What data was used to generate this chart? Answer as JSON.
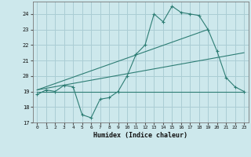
{
  "xlabel": "Humidex (Indice chaleur)",
  "ylabel": "",
  "background_color": "#cde8ec",
  "grid_color": "#aacdd4",
  "line_color": "#2d7d74",
  "xlim": [
    -0.5,
    23.5
  ],
  "ylim": [
    17,
    24.8
  ],
  "yticks": [
    17,
    18,
    19,
    20,
    21,
    22,
    23,
    24
  ],
  "xticks": [
    0,
    1,
    2,
    3,
    4,
    5,
    6,
    7,
    8,
    9,
    10,
    11,
    12,
    13,
    14,
    15,
    16,
    17,
    18,
    19,
    20,
    21,
    22,
    23
  ],
  "series_jagged": [
    [
      0,
      18.8
    ],
    [
      1,
      19.1
    ],
    [
      2,
      19.0
    ],
    [
      3,
      19.4
    ],
    [
      4,
      19.3
    ],
    [
      5,
      17.5
    ],
    [
      6,
      17.3
    ],
    [
      7,
      18.5
    ],
    [
      8,
      18.6
    ],
    [
      9,
      19.0
    ],
    [
      10,
      20.0
    ],
    [
      11,
      21.4
    ],
    [
      12,
      22.0
    ],
    [
      13,
      24.0
    ],
    [
      14,
      23.5
    ],
    [
      15,
      24.5
    ],
    [
      16,
      24.1
    ],
    [
      17,
      24.0
    ],
    [
      18,
      23.9
    ],
    [
      19,
      23.0
    ],
    [
      20,
      21.6
    ],
    [
      21,
      19.9
    ],
    [
      22,
      19.3
    ],
    [
      23,
      19.0
    ]
  ],
  "series_flat": [
    [
      0,
      19.0
    ],
    [
      12,
      19.0
    ],
    [
      18,
      19.0
    ],
    [
      23,
      19.0
    ]
  ],
  "series_linear1": [
    [
      0,
      19.1
    ],
    [
      23,
      21.5
    ]
  ],
  "series_linear2": [
    [
      0,
      19.1
    ],
    [
      19,
      23.0
    ]
  ]
}
